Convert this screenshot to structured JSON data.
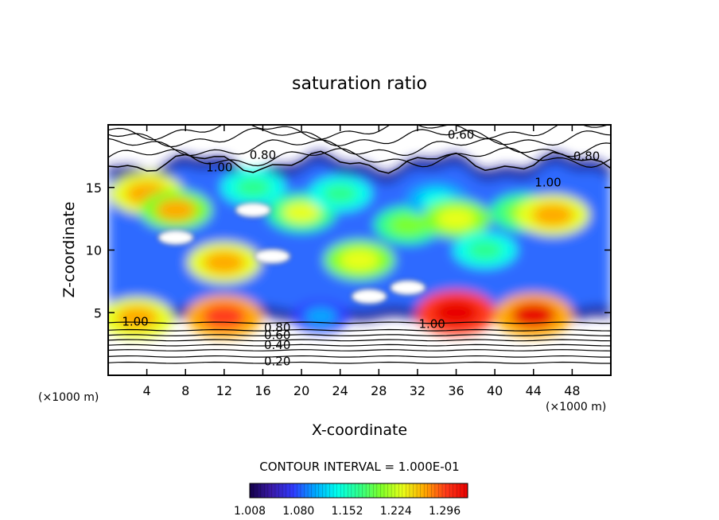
{
  "chart_data": {
    "type": "heatmap",
    "title": "saturation ratio",
    "xlabel": "X-coordinate",
    "ylabel": "Z-coordinate",
    "xunit_left": "(×1000 m)",
    "xunit_right": "(×1000 m)",
    "xlim": [
      0,
      52
    ],
    "ylim": [
      0,
      20
    ],
    "x_ticks": [
      4,
      8,
      12,
      16,
      20,
      24,
      28,
      32,
      36,
      40,
      44,
      48
    ],
    "y_ticks": [
      5,
      10,
      15
    ],
    "contour_interval_label": "CONTOUR INTERVAL = 1.000E-01",
    "contour_labels": [
      "0.60",
      "0.80",
      "1.00",
      "0.80",
      "1.00",
      "1.00",
      "1.00",
      "0.80",
      "0.60",
      "0.40",
      "0.20"
    ],
    "colorbar": {
      "min": 1.008,
      "max": 1.33,
      "tick_labels": [
        "1.008",
        "1.080",
        "1.152",
        "1.224",
        "1.296"
      ],
      "colors": [
        "#14004a",
        "#3a1aa8",
        "#2f3bff",
        "#00a8ff",
        "#00ffee",
        "#2eff8c",
        "#7cff2a",
        "#e8ff1a",
        "#ffaa00",
        "#ff3a1a",
        "#e80000"
      ]
    },
    "field": {
      "supersaturated_band_z": [
        4.5,
        17
      ],
      "blobs": [
        {
          "x": 4,
          "z": 14.5,
          "value": 1.28
        },
        {
          "x": 7,
          "z": 13.2,
          "value": 1.25
        },
        {
          "x": 12,
          "z": 9,
          "value": 1.27
        },
        {
          "x": 15,
          "z": 15,
          "value": 1.18
        },
        {
          "x": 20,
          "z": 13,
          "value": 1.22
        },
        {
          "x": 26,
          "z": 9.2,
          "value": 1.24
        },
        {
          "x": 24,
          "z": 14.5,
          "value": 1.16
        },
        {
          "x": 31,
          "z": 12,
          "value": 1.2
        },
        {
          "x": 34,
          "z": 14,
          "value": 1.15
        },
        {
          "x": 36,
          "z": 12.5,
          "value": 1.23
        },
        {
          "x": 39,
          "z": 10,
          "value": 1.17
        },
        {
          "x": 43,
          "z": 13,
          "value": 1.21
        },
        {
          "x": 46,
          "z": 12.8,
          "value": 1.27
        },
        {
          "x": 36,
          "z": 5,
          "value": 1.33
        },
        {
          "x": 44,
          "z": 4.8,
          "value": 1.32
        },
        {
          "x": 12,
          "z": 4.7,
          "value": 1.3
        },
        {
          "x": 3,
          "z": 4.6,
          "value": 1.26
        },
        {
          "x": 22,
          "z": 4.7,
          "value": 1.12
        }
      ],
      "unsaturated_holes": [
        {
          "x": 15,
          "z": 13.2
        },
        {
          "x": 7,
          "z": 11
        },
        {
          "x": 17,
          "z": 9.5
        },
        {
          "x": 27,
          "z": 6.3
        },
        {
          "x": 31,
          "z": 7
        }
      ]
    }
  }
}
